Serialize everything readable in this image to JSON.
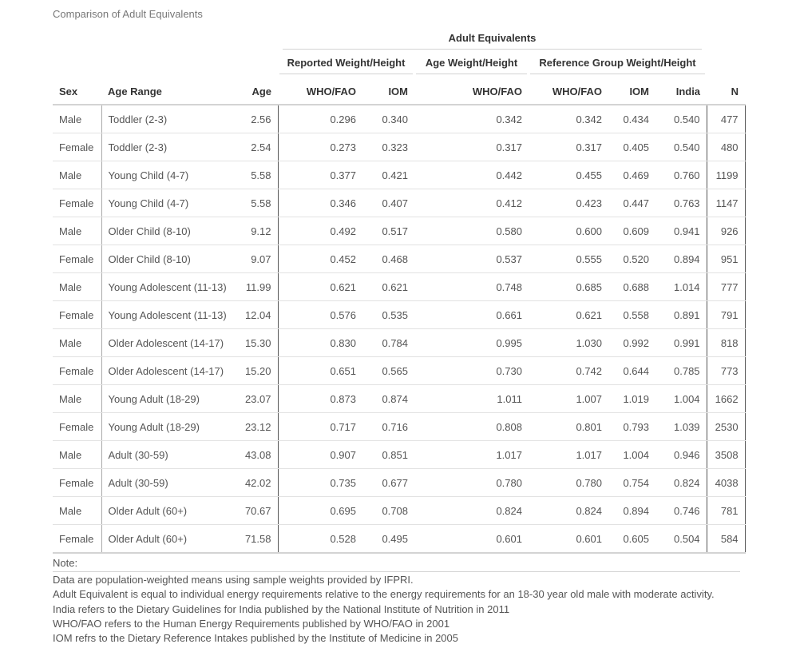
{
  "caption": "Comparison of Adult Equivalents",
  "spanners": {
    "top": "Adult Equivalents",
    "reported": "Reported Weight/Height",
    "age": "Age Weight/Height",
    "reference": "Reference Group Weight/Height"
  },
  "columns": [
    "Sex",
    "Age Range",
    "Age",
    "WHO/FAO",
    "IOM",
    "WHO/FAO",
    "WHO/FAO",
    "IOM",
    "India",
    "N"
  ],
  "rows": [
    [
      "Male",
      "Toddler (2-3)",
      "2.56",
      "0.296",
      "0.340",
      "0.342",
      "0.342",
      "0.434",
      "0.540",
      "477"
    ],
    [
      "Female",
      "Toddler (2-3)",
      "2.54",
      "0.273",
      "0.323",
      "0.317",
      "0.317",
      "0.405",
      "0.540",
      "480"
    ],
    [
      "Male",
      "Young Child (4-7)",
      "5.58",
      "0.377",
      "0.421",
      "0.442",
      "0.455",
      "0.469",
      "0.760",
      "1199"
    ],
    [
      "Female",
      "Young Child (4-7)",
      "5.58",
      "0.346",
      "0.407",
      "0.412",
      "0.423",
      "0.447",
      "0.763",
      "1147"
    ],
    [
      "Male",
      "Older Child (8-10)",
      "9.12",
      "0.492",
      "0.517",
      "0.580",
      "0.600",
      "0.609",
      "0.941",
      "926"
    ],
    [
      "Female",
      "Older Child (8-10)",
      "9.07",
      "0.452",
      "0.468",
      "0.537",
      "0.555",
      "0.520",
      "0.894",
      "951"
    ],
    [
      "Male",
      "Young Adolescent (11-13)",
      "11.99",
      "0.621",
      "0.621",
      "0.748",
      "0.685",
      "0.688",
      "1.014",
      "777"
    ],
    [
      "Female",
      "Young Adolescent (11-13)",
      "12.04",
      "0.576",
      "0.535",
      "0.661",
      "0.621",
      "0.558",
      "0.891",
      "791"
    ],
    [
      "Male",
      "Older Adolescent (14-17)",
      "15.30",
      "0.830",
      "0.784",
      "0.995",
      "1.030",
      "0.992",
      "0.991",
      "818"
    ],
    [
      "Female",
      "Older Adolescent (14-17)",
      "15.20",
      "0.651",
      "0.565",
      "0.730",
      "0.742",
      "0.644",
      "0.785",
      "773"
    ],
    [
      "Male",
      "Young Adult (18-29)",
      "23.07",
      "0.873",
      "0.874",
      "1.011",
      "1.007",
      "1.019",
      "1.004",
      "1662"
    ],
    [
      "Female",
      "Young Adult (18-29)",
      "23.12",
      "0.717",
      "0.716",
      "0.808",
      "0.801",
      "0.793",
      "1.039",
      "2530"
    ],
    [
      "Male",
      "Adult (30-59)",
      "43.08",
      "0.907",
      "0.851",
      "1.017",
      "1.017",
      "1.004",
      "0.946",
      "3508"
    ],
    [
      "Female",
      "Adult (30-59)",
      "42.02",
      "0.735",
      "0.677",
      "0.780",
      "0.780",
      "0.754",
      "0.824",
      "4038"
    ],
    [
      "Male",
      "Older Adult (60+)",
      "70.67",
      "0.695",
      "0.708",
      "0.824",
      "0.824",
      "0.894",
      "0.746",
      "781"
    ],
    [
      "Female",
      "Older Adult (60+)",
      "71.58",
      "0.528",
      "0.495",
      "0.601",
      "0.601",
      "0.605",
      "0.504",
      "584"
    ]
  ],
  "notes": {
    "header": "Note:",
    "lines": [
      "Data are population-weighted means using sample weights provided by IFPRI.",
      "Adult Equivalent is equal to individual energy requirements relative to the energy requirements for an 18-30 year old male with moderate activity.",
      "India refers to the Dietary Guidelines for India published by the National Institute of Nutrition in 2011",
      "WHO/FAO refers to the Human Energy Requirements published by WHO/FAO in 2001",
      "IOM refrs to the Dietary Reference Intakes published by the Institute of Medicine in 2005"
    ]
  }
}
